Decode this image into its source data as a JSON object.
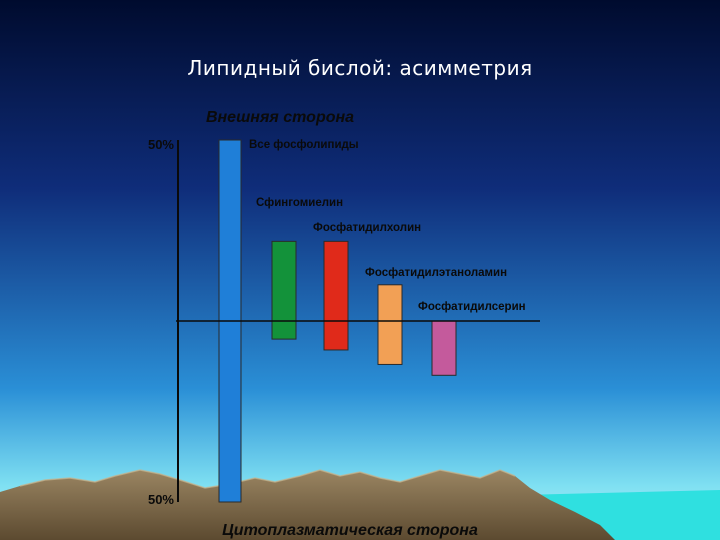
{
  "slide": {
    "title": "Липидный бислой: асимметрия"
  },
  "colors": {
    "sky_top": "#000b2e",
    "sky_mid": "#0f2d7a",
    "sky_low": "#2a8fd6",
    "horizon": "#7fe0f2",
    "mountain": "#6b5a3e",
    "mountain_light": "#9a8562",
    "sea": "#2fe0e0",
    "axis": "#0a0a0a"
  },
  "chart_data": {
    "type": "bar",
    "subtype": "floating",
    "title": "",
    "top_label": "Внешняя сторона",
    "bottom_label": "Цитоплазматическая сторона",
    "y_tick_labels": [
      "50%",
      "50%"
    ],
    "ylim": [
      -50,
      50
    ],
    "baseline": 0,
    "bars": [
      {
        "name": "Все фосфолипиды",
        "low": -50,
        "high": 50,
        "color": "#1f7fd8"
      },
      {
        "name": "Сфингомиелин",
        "low": -5,
        "high": 22,
        "color": "#13923a"
      },
      {
        "name": "Фосфатидилхолин",
        "low": -8,
        "high": 22,
        "color": "#e02a1a"
      },
      {
        "name": "Фосфатидилэтаноламин",
        "low": -12,
        "high": 10,
        "color": "#f2a055"
      },
      {
        "name": "Фосфатидилсерин",
        "low": -15,
        "high": 0,
        "color": "#c45a9c"
      }
    ]
  }
}
